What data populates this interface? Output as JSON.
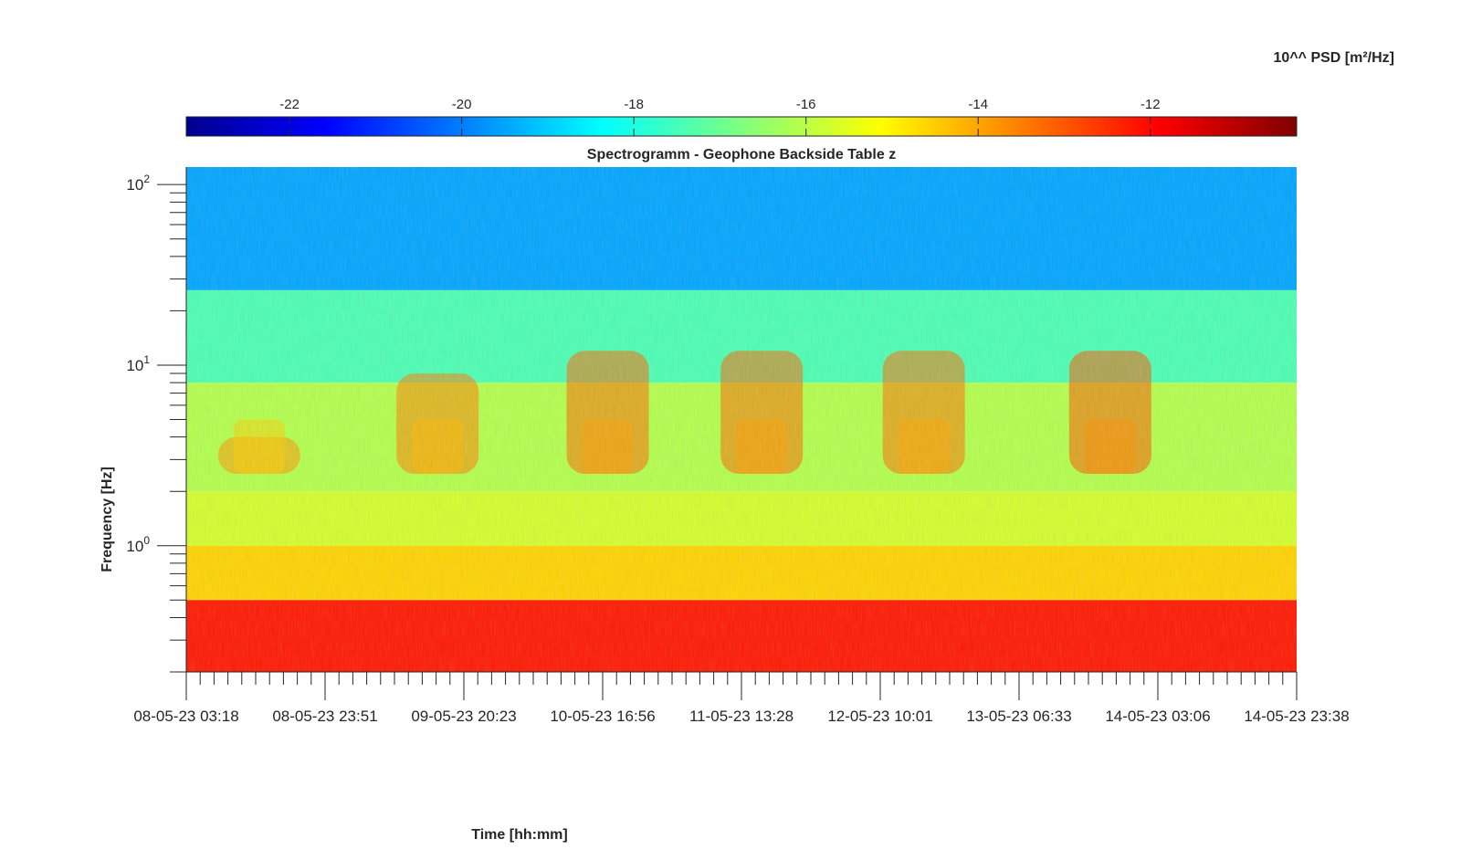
{
  "chart_data": {
    "type": "heatmap",
    "title": "Spectrogramm - Geophone Backside Table z",
    "xlabel": "Time [hh:mm]",
    "ylabel": "Frequency [Hz]",
    "colorbar_label": "10^^ PSD [m²/Hz]",
    "colorbar_ticks": [
      "-22",
      "-20",
      "-18",
      "-16",
      "-14",
      "-12"
    ],
    "colorbar_tick_values": [
      -22,
      -20,
      -18,
      -16,
      -14,
      -12
    ],
    "colorbar_range": [
      -23.2,
      -10.3
    ],
    "colormap": "jet",
    "x_tick_labels": [
      "08-05-23 03:18",
      "08-05-23 23:51",
      "09-05-23 20:23",
      "10-05-23 16:56",
      "11-05-23 13:28",
      "12-05-23 10:01",
      "13-05-23 06:33",
      "14-05-23 03:06",
      "14-05-23 23:38"
    ],
    "x_range": [
      "08-05-23 03:18",
      "14-05-23 23:38"
    ],
    "y_scale": "log",
    "y_tick_labels": [
      {
        "base": "10",
        "exp": "2",
        "value": 100
      },
      {
        "base": "10",
        "exp": "1",
        "value": 10
      },
      {
        "base": "10",
        "exp": "0",
        "value": 1
      }
    ],
    "y_range": [
      0.2,
      125
    ],
    "bands": [
      {
        "f_low": 26,
        "f_high": 125,
        "log_psd": -19.5
      },
      {
        "f_low": 8,
        "f_high": 26,
        "log_psd": -17.4
      },
      {
        "f_low": 2,
        "f_high": 8,
        "log_psd": -16.1
      },
      {
        "f_low": 1,
        "f_high": 2,
        "log_psd": -15.7
      },
      {
        "f_low": 0.5,
        "f_high": 1,
        "log_psd": -14.6
      },
      {
        "f_low": 0.2,
        "f_high": 0.5,
        "log_psd": -12.2
      }
    ],
    "activity_bursts": [
      {
        "day_center": 0.45,
        "f_low": 2.5,
        "f_high": 4,
        "log_psd": -13.8
      },
      {
        "day_center": 1.55,
        "f_low": 2.5,
        "f_high": 9,
        "log_psd": -13.5
      },
      {
        "day_center": 2.6,
        "f_low": 2.5,
        "f_high": 12,
        "log_psd": -13.2
      },
      {
        "day_center": 3.55,
        "f_low": 2.5,
        "f_high": 12,
        "log_psd": -13.2
      },
      {
        "day_center": 4.55,
        "f_low": 2.5,
        "f_high": 12,
        "log_psd": -13.3
      },
      {
        "day_center": 5.7,
        "f_low": 2.5,
        "f_high": 12,
        "log_psd": -13.0
      }
    ]
  }
}
